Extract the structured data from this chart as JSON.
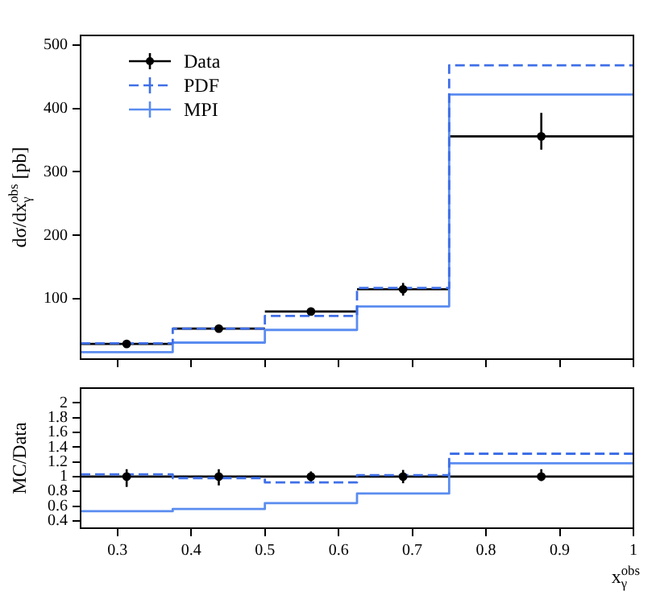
{
  "chart_data": [
    {
      "type": "histogram",
      "ylabel": "dσ/dx$_{γ}$$^{obs}$ [pb]",
      "bins": [
        0.25,
        0.375,
        0.5,
        0.625,
        0.75,
        1.0
      ],
      "xlim": [
        0.25,
        1.0
      ],
      "xticks": [
        0.3,
        0.4,
        0.5,
        0.6,
        0.7,
        0.8,
        0.9,
        1
      ],
      "ylim": [
        5,
        515
      ],
      "yticks": [
        100,
        200,
        300,
        400,
        500
      ],
      "tick_labels": "y",
      "grid": false,
      "legend": "top left",
      "series": [
        {
          "name": "Data",
          "type": "scatter",
          "color": "#000000",
          "x": [
            0.3125,
            0.4375,
            0.5625,
            0.6875,
            0.875
          ],
          "values": [
            29,
            53,
            80,
            115,
            356
          ],
          "errors": [
            null,
            null,
            null,
            10,
            [
              335,
              393
            ]
          ],
          "xerrors": [
            0.0625,
            0.0625,
            0.0625,
            0.0625,
            0.125
          ],
          "marker": "circle"
        },
        {
          "name": "PDF",
          "color": "#3f6fe8",
          "values": [
            30,
            53,
            73,
            117,
            468
          ],
          "line_style": "dashed"
        },
        {
          "name": "MPI",
          "color": "#5a8cf0",
          "values": [
            16,
            31,
            51,
            88,
            422
          ]
        }
      ]
    },
    {
      "type": "histogram",
      "xlabel": "x$_{γ}$$^{obs}$",
      "ylabel": "MC/Data",
      "bins": [
        0.25,
        0.375,
        0.5,
        0.625,
        0.75,
        1.0
      ],
      "xlim": [
        0.25,
        1.0
      ],
      "xticks": [
        0.3,
        0.4,
        0.5,
        0.6,
        0.7,
        0.8,
        0.9,
        1
      ],
      "ylim": [
        0.3,
        2.2
      ],
      "yticks": [
        0.4,
        0.6,
        0.8,
        1,
        1.2,
        1.4,
        1.6,
        1.8,
        2
      ],
      "grid": false,
      "ref_lines": [
        {
          "axis": "y",
          "value": 1,
          "color": "#000000"
        }
      ],
      "series": [
        {
          "type": "scatter",
          "color": "#000000",
          "x": [
            0.3125,
            0.4375,
            0.5625,
            0.6875,
            0.875
          ],
          "values": [
            1,
            1,
            1,
            1,
            1
          ],
          "errors": [
            [
              0.86,
              1.1
            ],
            [
              0.88,
              1.1
            ],
            [
              0.93,
              1.07
            ],
            [
              0.91,
              1.09
            ],
            [
              0.94,
              1.1
            ]
          ],
          "marker": "circle"
        },
        {
          "color": "#3f6fe8",
          "values": [
            1.03,
            0.98,
            0.92,
            1.02,
            1.31
          ],
          "line_style": "dashed"
        },
        {
          "color": "#5a8cf0",
          "values": [
            0.53,
            0.56,
            0.64,
            0.77,
            1.18
          ]
        }
      ]
    }
  ]
}
